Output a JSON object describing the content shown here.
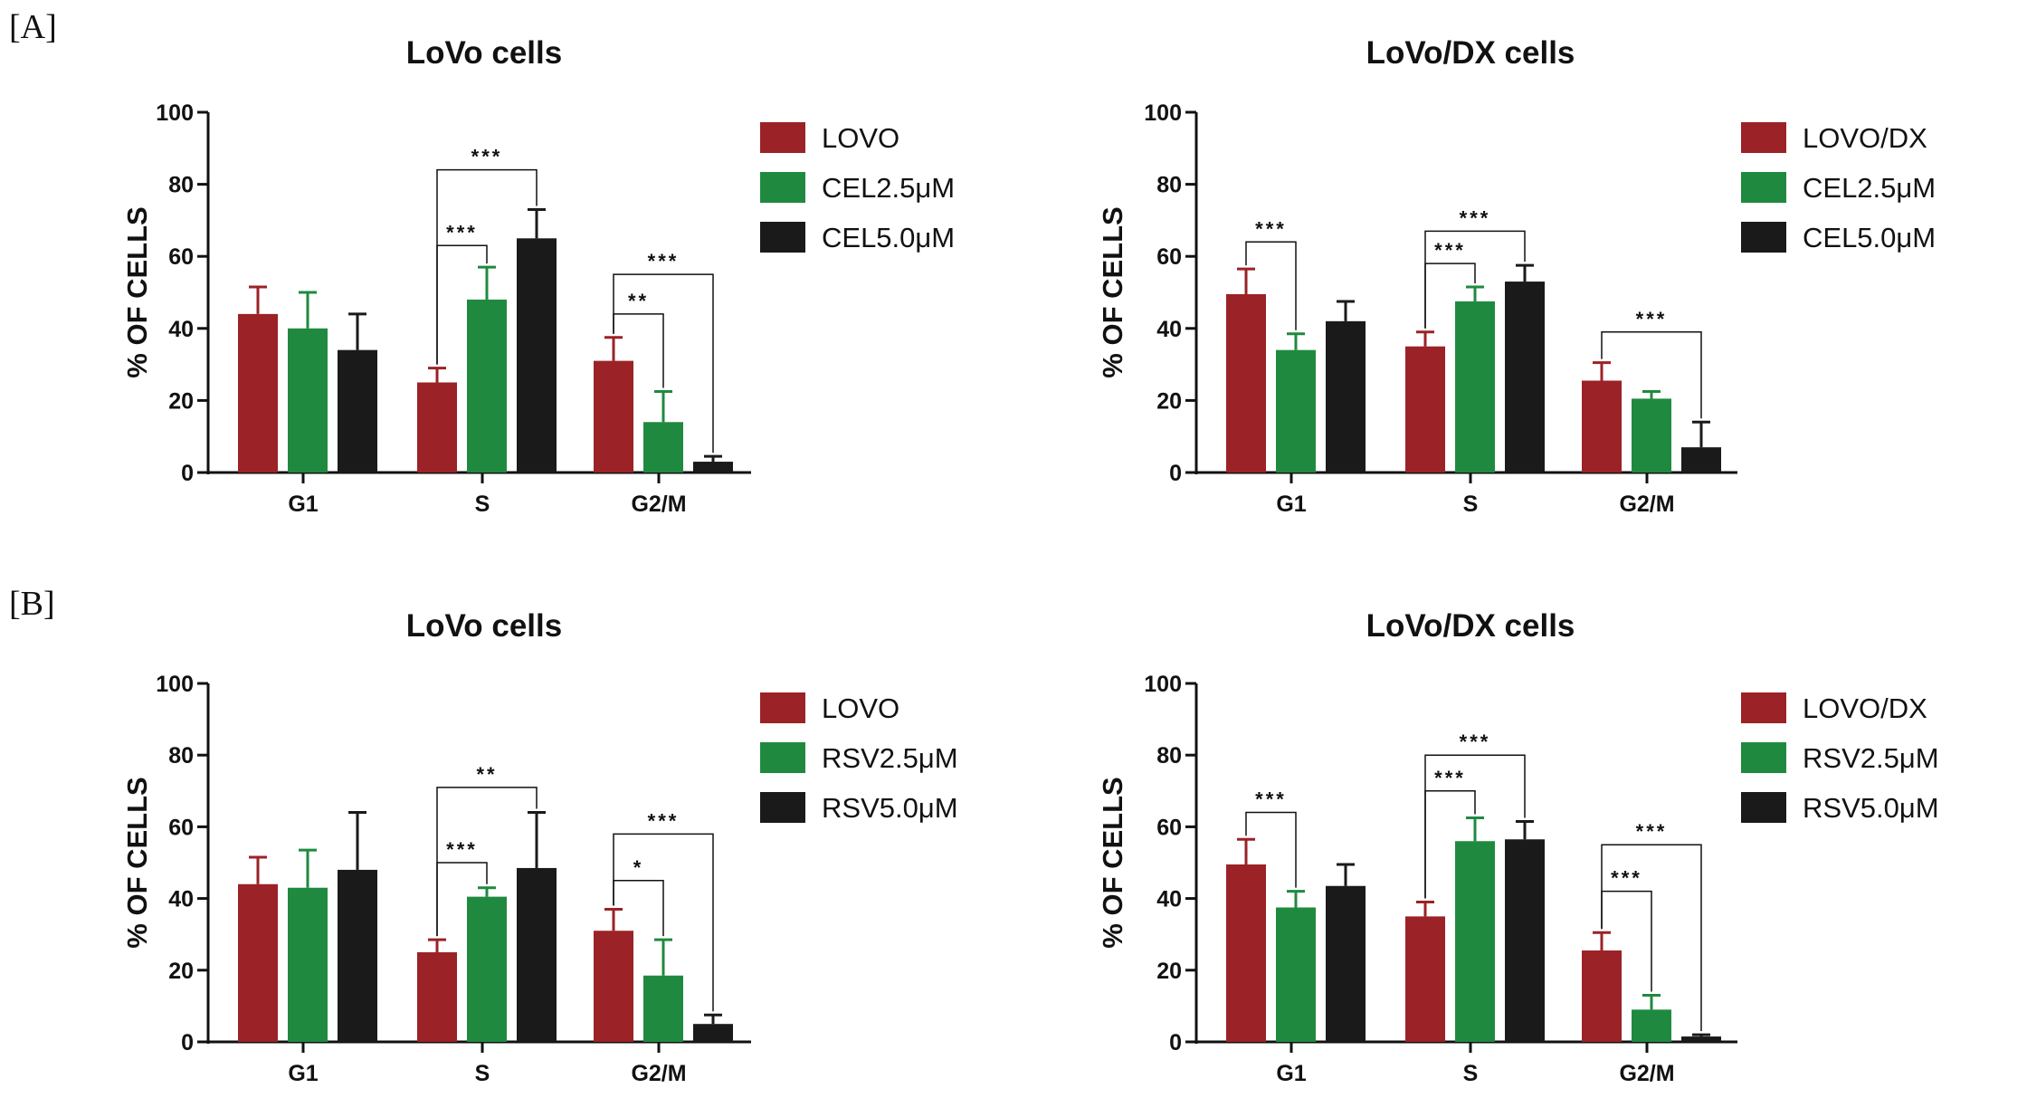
{
  "panels": [
    {
      "label": "[A]"
    },
    {
      "label": "[B]"
    }
  ],
  "colors": {
    "control": "#9b2226",
    "low": "#1f8a3f",
    "high": "#1a1a1a",
    "axis": "#111111"
  },
  "chart_data": [
    {
      "type": "bar",
      "title": "LoVo cells",
      "xlabel": "",
      "ylabel": "% OF CELLS",
      "ylim": [
        0,
        100
      ],
      "yticks": [
        "0",
        "20",
        "40",
        "60",
        "80",
        "100"
      ],
      "categories": [
        "G1",
        "S",
        "G2/M"
      ],
      "legend_position": "right",
      "series": [
        {
          "name": "LOVO",
          "values": [
            44,
            25,
            31
          ],
          "errors": [
            7.5,
            4,
            6.5
          ]
        },
        {
          "name": "CEL2.5μM",
          "values": [
            40,
            48,
            14
          ],
          "errors": [
            10,
            9,
            8.5
          ]
        },
        {
          "name": "CEL5.0μM",
          "values": [
            34,
            65,
            3
          ],
          "errors": [
            10,
            8,
            1.5
          ]
        }
      ],
      "significance": [
        {
          "category": "S",
          "from": 0,
          "to": 2,
          "y": 84,
          "label": "***"
        },
        {
          "category": "S",
          "from": 0,
          "to": 1,
          "y": 63,
          "label": "***"
        },
        {
          "category": "G2/M",
          "from": 0,
          "to": 2,
          "y": 55,
          "label": "***"
        },
        {
          "category": "G2/M",
          "from": 0,
          "to": 1,
          "y": 44,
          "label": "**"
        }
      ]
    },
    {
      "type": "bar",
      "title": "LoVo/DX cells",
      "xlabel": "",
      "ylabel": "% OF CELLS",
      "ylim": [
        0,
        100
      ],
      "yticks": [
        "0",
        "20",
        "40",
        "60",
        "80",
        "100"
      ],
      "categories": [
        "G1",
        "S",
        "G2/M"
      ],
      "legend_position": "right",
      "series": [
        {
          "name": "LOVO/DX",
          "values": [
            49.5,
            35,
            25.5
          ],
          "errors": [
            7,
            4,
            5
          ]
        },
        {
          "name": "CEL2.5μM",
          "values": [
            34,
            47.5,
            20.5
          ],
          "errors": [
            4.5,
            4,
            2
          ]
        },
        {
          "name": "CEL5.0μM",
          "values": [
            42,
            53,
            7
          ],
          "errors": [
            5.5,
            4.5,
            7
          ]
        }
      ],
      "significance": [
        {
          "category": "G1",
          "from": 0,
          "to": 1,
          "y": 64,
          "label": "***"
        },
        {
          "category": "S",
          "from": 0,
          "to": 2,
          "y": 67,
          "label": "***"
        },
        {
          "category": "S",
          "from": 0,
          "to": 1,
          "y": 58,
          "label": "***"
        },
        {
          "category": "G2/M",
          "from": 0,
          "to": 2,
          "y": 39,
          "label": "***"
        }
      ]
    },
    {
      "type": "bar",
      "title": "LoVo cells",
      "xlabel": "",
      "ylabel": "% OF CELLS",
      "ylim": [
        0,
        100
      ],
      "yticks": [
        "0",
        "20",
        "40",
        "60",
        "80",
        "100"
      ],
      "categories": [
        "G1",
        "S",
        "G2/M"
      ],
      "legend_position": "right",
      "series": [
        {
          "name": "LOVO",
          "values": [
            44,
            25,
            31
          ],
          "errors": [
            7.5,
            3.5,
            6
          ]
        },
        {
          "name": "RSV2.5μM",
          "values": [
            43,
            40.5,
            18.5
          ],
          "errors": [
            10.5,
            2.5,
            10
          ]
        },
        {
          "name": "RSV5.0μM",
          "values": [
            48,
            48.5,
            5
          ],
          "errors": [
            16,
            15.5,
            2.5
          ]
        }
      ],
      "significance": [
        {
          "category": "S",
          "from": 0,
          "to": 2,
          "y": 71,
          "label": "**"
        },
        {
          "category": "S",
          "from": 0,
          "to": 1,
          "y": 50,
          "label": "***"
        },
        {
          "category": "G2/M",
          "from": 0,
          "to": 2,
          "y": 58,
          "label": "***"
        },
        {
          "category": "G2/M",
          "from": 0,
          "to": 1,
          "y": 45,
          "label": "*"
        }
      ]
    },
    {
      "type": "bar",
      "title": "LoVo/DX cells",
      "xlabel": "",
      "ylabel": "% OF CELLS",
      "ylim": [
        0,
        100
      ],
      "yticks": [
        "0",
        "20",
        "40",
        "60",
        "80",
        "100"
      ],
      "categories": [
        "G1",
        "S",
        "G2/M"
      ],
      "legend_position": "right",
      "series": [
        {
          "name": "LOVO/DX",
          "values": [
            49.5,
            35,
            25.5
          ],
          "errors": [
            7,
            4,
            5
          ]
        },
        {
          "name": "RSV2.5μM",
          "values": [
            37.5,
            56,
            9
          ],
          "errors": [
            4.5,
            6.5,
            4
          ]
        },
        {
          "name": "RSV5.0μM",
          "values": [
            43.5,
            56.5,
            1.5
          ],
          "errors": [
            6,
            5,
            0.5
          ]
        }
      ],
      "significance": [
        {
          "category": "G1",
          "from": 0,
          "to": 1,
          "y": 64,
          "label": "***"
        },
        {
          "category": "S",
          "from": 0,
          "to": 2,
          "y": 80,
          "label": "***"
        },
        {
          "category": "S",
          "from": 0,
          "to": 1,
          "y": 70,
          "label": "***"
        },
        {
          "category": "G2/M",
          "from": 0,
          "to": 2,
          "y": 55,
          "label": "***"
        },
        {
          "category": "G2/M",
          "from": 0,
          "to": 1,
          "y": 42,
          "label": "***"
        }
      ]
    }
  ]
}
